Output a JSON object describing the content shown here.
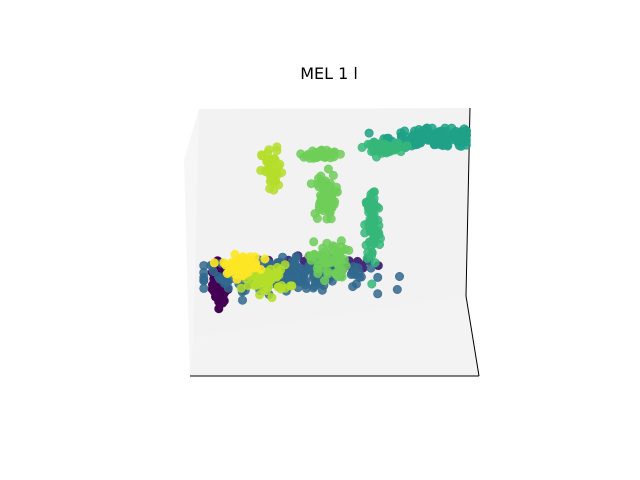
{
  "title": "MEL 1 l",
  "chart_data": {
    "type": "scatter",
    "title": "MEL 1 l",
    "projection": "3d",
    "xlabel": "",
    "ylabel": "",
    "zlabel": "",
    "ticks_visible": false,
    "grid": false,
    "legend": "none",
    "colormap": "viridis",
    "clusters": [
      {
        "color": "#440154",
        "alpha": 1.0,
        "n": 90,
        "center": [
          -0.92,
          -0.55
        ],
        "spread": [
          0.05,
          0.16
        ]
      },
      {
        "color": "#482878",
        "alpha": 1.0,
        "n": 40,
        "center": [
          -0.05,
          -0.35
        ],
        "spread": [
          0.35,
          0.07
        ]
      },
      {
        "color": "#31688e",
        "alpha": 0.85,
        "n": 220,
        "center": [
          -0.4,
          -0.45
        ],
        "spread": [
          0.55,
          0.13
        ]
      },
      {
        "color": "#1fa187",
        "alpha": 0.85,
        "n": 160,
        "center": [
          0.82,
          0.95
        ],
        "spread": [
          0.32,
          0.08
        ]
      },
      {
        "color": "#35b779",
        "alpha": 0.85,
        "n": 70,
        "center": [
          0.37,
          0.85
        ],
        "spread": [
          0.11,
          0.04
        ]
      },
      {
        "color": "#35b779",
        "alpha": 0.85,
        "n": 80,
        "center": [
          0.3,
          0.05
        ],
        "spread": [
          0.05,
          0.35
        ]
      },
      {
        "color": "#6ece58",
        "alpha": 0.85,
        "n": 50,
        "center": [
          -0.1,
          0.78
        ],
        "spread": [
          0.1,
          0.04
        ]
      },
      {
        "color": "#6ece58",
        "alpha": 0.85,
        "n": 70,
        "center": [
          -0.08,
          0.35
        ],
        "spread": [
          0.07,
          0.2
        ]
      },
      {
        "color": "#6ece58",
        "alpha": 0.85,
        "n": 60,
        "center": [
          -0.05,
          -0.3
        ],
        "spread": [
          0.12,
          0.16
        ]
      },
      {
        "color": "#b5de2b",
        "alpha": 0.85,
        "n": 45,
        "center": [
          -0.5,
          0.6
        ],
        "spread": [
          0.07,
          0.2
        ]
      },
      {
        "color": "#b5de2b",
        "alpha": 0.85,
        "n": 60,
        "center": [
          -0.55,
          -0.5
        ],
        "spread": [
          0.15,
          0.12
        ]
      },
      {
        "color": "#fde725",
        "alpha": 0.9,
        "n": 60,
        "center": [
          -0.75,
          -0.35
        ],
        "spread": [
          0.12,
          0.08
        ]
      }
    ]
  }
}
